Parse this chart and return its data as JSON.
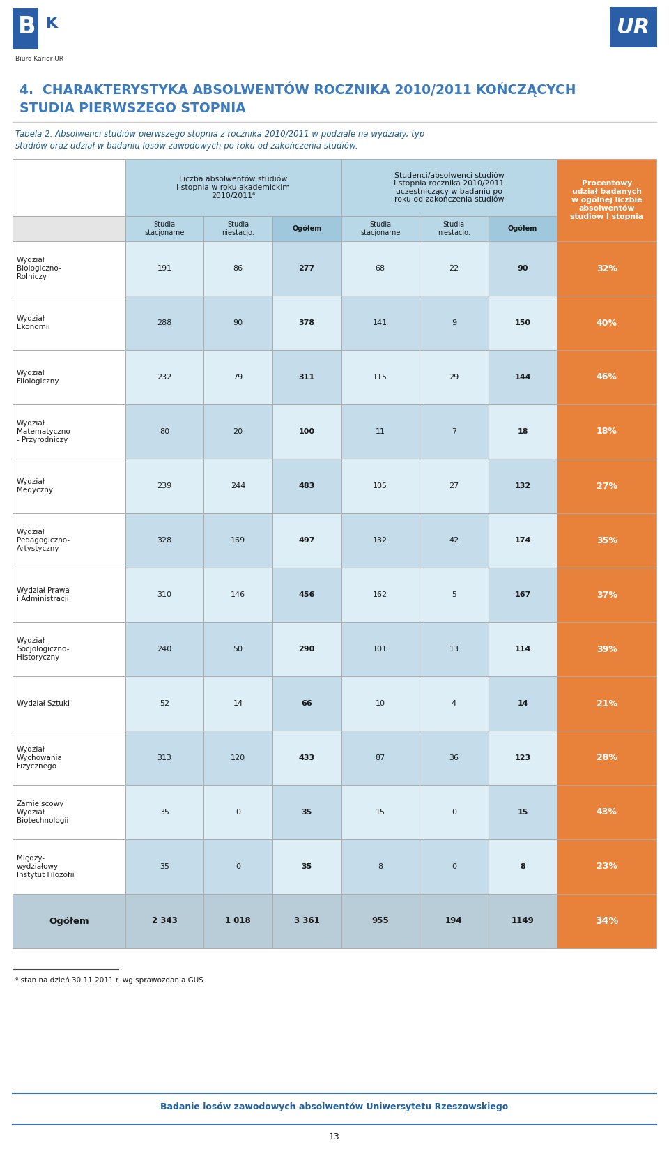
{
  "title_line1": "4.  CHARAKTERYSTYKA ABSOLWENTÓW ROCZNIKA 2010/2011 KOŃCZĄCYCH",
  "title_line2": "STUDIA PIERWSZEGO STOPNIA",
  "subtitle1": "Tabela 2. Absolwenci studiów pierwszego stopnia z rocznika 2010/2011 w podziale na wydziały, typ",
  "subtitle2": "studiów oraz udział w badaniu losów zawodowych po roku od zakończenia studiów.",
  "col_header1": "Liczba absolwentów studiów\nI stopnia w roku akademickim\n2010/2011⁶",
  "col_header2": "Studenci/absolwenci studiów\nI stopnia rocznika 2010/2011\nuczestniczący w badaniu po\nroku od zakończenia studiów",
  "col_header3": "Procentowy\nudział badanych\nw ogólnej liczbie\nabsolwentów\nstudiów I stopnia",
  "sub_headers": [
    "Studia\nstacjonarne",
    "Studia\nniestacjo.",
    "Ogółem",
    "Studia\nstacjonarne",
    "Studia\nniestacjo.",
    "Ogółem"
  ],
  "rows": [
    {
      "name": "Wydział\nBiologiczno-\nRolniczy",
      "v": [
        191,
        86,
        277,
        68,
        22,
        90,
        "32%"
      ]
    },
    {
      "name": "Wydział\nEkonomii",
      "v": [
        288,
        90,
        378,
        141,
        9,
        150,
        "40%"
      ]
    },
    {
      "name": "Wydział\nFilologiczny",
      "v": [
        232,
        79,
        311,
        115,
        29,
        144,
        "46%"
      ]
    },
    {
      "name": "Wydział\nMatematyczno\n- Przyrodniczy",
      "v": [
        80,
        20,
        100,
        11,
        7,
        18,
        "18%"
      ]
    },
    {
      "name": "Wydział\nMedyczny",
      "v": [
        239,
        244,
        483,
        105,
        27,
        132,
        "27%"
      ]
    },
    {
      "name": "Wydział\nPedagogiczno-\nArtystyczny",
      "v": [
        328,
        169,
        497,
        132,
        42,
        174,
        "35%"
      ]
    },
    {
      "name": "Wydział Prawa\ni Administracji",
      "v": [
        310,
        146,
        456,
        162,
        5,
        167,
        "37%"
      ]
    },
    {
      "name": "Wydział\nSocjologiczno-\nHistoryczny",
      "v": [
        240,
        50,
        290,
        101,
        13,
        114,
        "39%"
      ]
    },
    {
      "name": "Wydział Sztuki",
      "v": [
        52,
        14,
        66,
        10,
        4,
        14,
        "21%"
      ]
    },
    {
      "name": "Wydział\nWychowania\nFizycznego",
      "v": [
        313,
        120,
        433,
        87,
        36,
        123,
        "28%"
      ]
    },
    {
      "name": "Zamiejscowy\nWydział\nBiotechnologii",
      "v": [
        35,
        0,
        35,
        15,
        0,
        15,
        "43%"
      ]
    },
    {
      "name": "Między-\nwydziałowy\nInstytut Filozofii",
      "v": [
        35,
        0,
        35,
        8,
        0,
        8,
        "23%"
      ]
    }
  ],
  "total_row": {
    "name": "Ogółem",
    "v": [
      "2 343",
      "1 018",
      "3 361",
      955,
      194,
      1149,
      "34%"
    ]
  },
  "footnote": "⁶ stan na dzień 30.11.2011 r. wg sprawozdania GUS",
  "footer": "Badanie losów zawodowych absolwentów Uniwersytetu Rzeszowskiego",
  "page_num": "13",
  "bg_color": "#ffffff",
  "header_blue": "#b8d8e8",
  "header_medium_blue": "#a0c8dc",
  "orange_color": "#e8823a",
  "title_color": "#3a7abf",
  "subtitle_color": "#1a5a8a",
  "text_dark": "#1a1a1a",
  "row_light": "#ddeef6",
  "row_medium": "#c5dcea",
  "total_bg": "#b8cdd8",
  "border_color": "#aaaaaa",
  "footer_color": "#2060a0",
  "logo_blue": "#2a5fa8"
}
